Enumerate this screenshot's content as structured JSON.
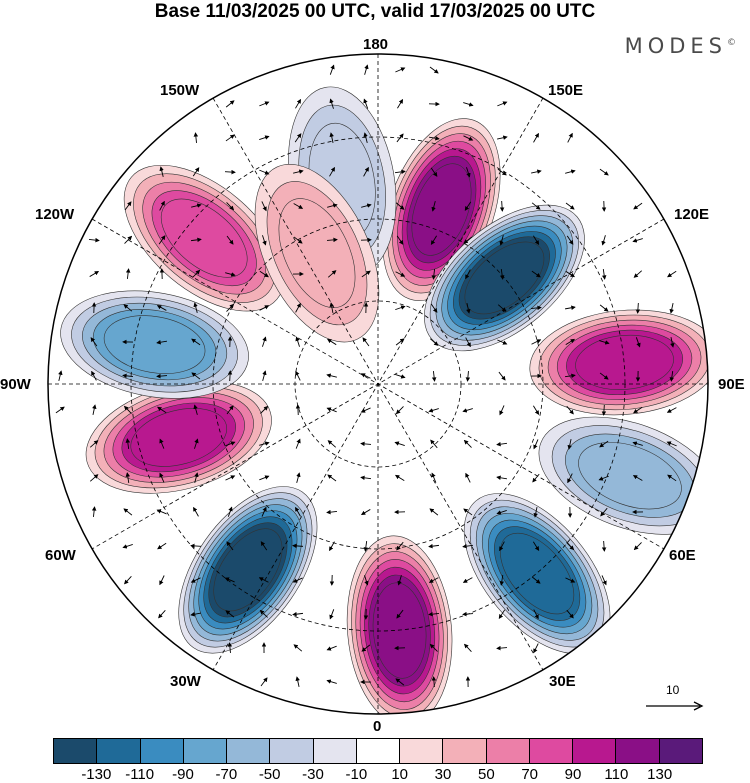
{
  "title": "Base 11/03/2025 00 UTC, valid 17/03/2025 00 UTC",
  "brand": "MODES",
  "brand_mark": "©",
  "longitude_labels": {
    "top": "180",
    "top_left": "150W",
    "top_right": "150E",
    "upper_left": "120W",
    "upper_right": "120E",
    "left": "90W",
    "right": "90E",
    "lower_left": "60W",
    "lower_right": "60E",
    "bottom_left": "30W",
    "bottom_right": "30E",
    "bottom": "0"
  },
  "reference_vector_label": "10",
  "colorbar": {
    "colors": [
      "#1b4a6b",
      "#1f6a98",
      "#3a8cc0",
      "#66a6cf",
      "#94b8d8",
      "#c1cce3",
      "#e4e4ef",
      "#ffffff",
      "#f9d9da",
      "#f3b0b8",
      "#ec7fa8",
      "#de4aa0",
      "#b8188f",
      "#8a0f86",
      "#5a1a7a"
    ],
    "tick_labels": [
      "-130",
      "-110",
      "-90",
      "-70",
      "-50",
      "-30",
      "-10",
      "10",
      "30",
      "50",
      "70",
      "90",
      "110",
      "130"
    ]
  },
  "anomaly_centers": [
    {
      "lon": 160,
      "lat": 45,
      "value": 120
    },
    {
      "lon": 130,
      "lat": 50,
      "value": -135
    },
    {
      "lon": 95,
      "lat": 30,
      "value": 105
    },
    {
      "lon": 70,
      "lat": 25,
      "value": -50
    },
    {
      "lon": 40,
      "lat": 30,
      "value": -110
    },
    {
      "lon": 5,
      "lat": 30,
      "value": 125
    },
    {
      "lon": -35,
      "lat": 35,
      "value": -135
    },
    {
      "lon": -75,
      "lat": 40,
      "value": 90
    },
    {
      "lon": -100,
      "lat": 35,
      "value": -70
    },
    {
      "lon": -130,
      "lat": 35,
      "value": 80
    },
    {
      "lon": -170,
      "lat": 40,
      "value": -40
    },
    {
      "lon": -155,
      "lat": 55,
      "value": 30
    }
  ]
}
